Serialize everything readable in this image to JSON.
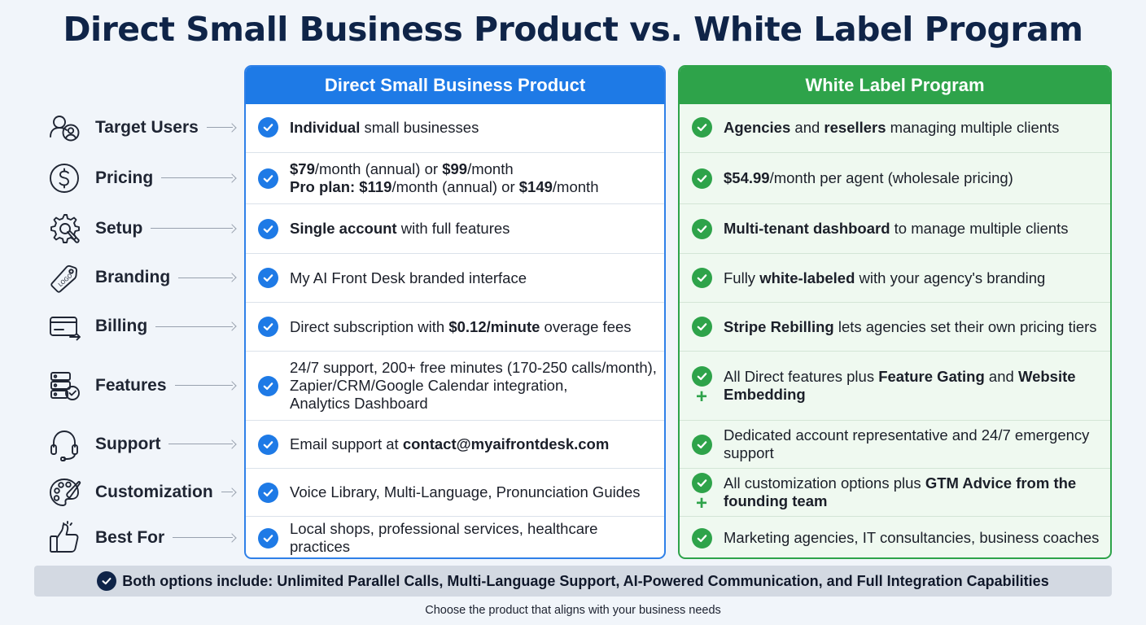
{
  "title": "Direct Small Business Product vs. White Label Program",
  "colors": {
    "title": "#0f2448",
    "direct_accent": "#1e7ae6",
    "white_label_accent": "#2ea34a",
    "banner_bg": "#d3d9e2"
  },
  "rows": [
    {
      "label": "Target Users",
      "icon": "users-icon"
    },
    {
      "label": "Pricing",
      "icon": "dollar-icon"
    },
    {
      "label": "Setup",
      "icon": "gear-wrench-icon"
    },
    {
      "label": "Branding",
      "icon": "logo-tag-icon"
    },
    {
      "label": "Billing",
      "icon": "credit-card-icon"
    },
    {
      "label": "Features",
      "icon": "server-check-icon"
    },
    {
      "label": "Support",
      "icon": "headset-icon"
    },
    {
      "label": "Customization",
      "icon": "palette-icon"
    },
    {
      "label": "Best For",
      "icon": "thumbs-up-icon"
    }
  ],
  "direct": {
    "header": "Direct Small Business Product",
    "cells": [
      {
        "lines": [
          [
            {
              "t": "Individual",
              "b": true
            },
            {
              "t": " small businesses"
            }
          ]
        ]
      },
      {
        "lines": [
          [
            {
              "t": "$79",
              "b": true
            },
            {
              "t": "/month (annual) or "
            },
            {
              "t": "$99",
              "b": true
            },
            {
              "t": "/month"
            }
          ],
          [
            {
              "t": "Pro plan: $119",
              "b": true
            },
            {
              "t": "/month (annual) or "
            },
            {
              "t": "$149",
              "b": true
            },
            {
              "t": "/month"
            }
          ]
        ]
      },
      {
        "lines": [
          [
            {
              "t": "Single account",
              "b": true
            },
            {
              "t": " with full features"
            }
          ]
        ]
      },
      {
        "lines": [
          [
            {
              "t": "My AI Front Desk branded interface"
            }
          ]
        ]
      },
      {
        "lines": [
          [
            {
              "t": "Direct subscription with "
            },
            {
              "t": "$0.12/minute",
              "b": true
            },
            {
              "t": " overage fees"
            }
          ]
        ]
      },
      {
        "lines": [
          [
            {
              "t": "24/7 support, 200+ free minutes (170-250 calls/month),"
            }
          ],
          [
            {
              "t": "Zapier/CRM/Google Calendar integration,"
            }
          ],
          [
            {
              "t": "Analytics Dashboard"
            }
          ]
        ]
      },
      {
        "lines": [
          [
            {
              "t": "Email support at "
            },
            {
              "t": "contact@myaifrontdesk.com",
              "b": true
            }
          ]
        ]
      },
      {
        "lines": [
          [
            {
              "t": "Voice Library, Multi-Language, Pronunciation Guides"
            }
          ]
        ]
      },
      {
        "lines": [
          [
            {
              "t": "Local shops, professional services, healthcare practices"
            }
          ]
        ]
      }
    ]
  },
  "white_label": {
    "header": "White Label Program",
    "cells": [
      {
        "lines": [
          [
            {
              "t": "Agencies",
              "b": true
            },
            {
              "t": " and "
            },
            {
              "t": "resellers",
              "b": true
            },
            {
              "t": " managing multiple clients"
            }
          ]
        ]
      },
      {
        "lines": [
          [
            {
              "t": "$54.99",
              "b": true
            },
            {
              "t": "/month per agent (wholesale pricing)"
            }
          ]
        ]
      },
      {
        "lines": [
          [
            {
              "t": "Multi-tenant dashboard",
              "b": true
            },
            {
              "t": " to manage multiple clients"
            }
          ]
        ]
      },
      {
        "lines": [
          [
            {
              "t": "Fully "
            },
            {
              "t": "white-labeled",
              "b": true
            },
            {
              "t": " with your agency's branding"
            }
          ]
        ]
      },
      {
        "lines": [
          [
            {
              "t": "Stripe Rebilling",
              "b": true
            },
            {
              "t": " lets agencies set their own pricing tiers"
            }
          ]
        ]
      },
      {
        "plus": true,
        "lines": [
          [
            {
              "t": "All Direct features plus "
            },
            {
              "t": "Feature Gating",
              "b": true
            },
            {
              "t": " and "
            },
            {
              "t": "Website",
              "b": true
            }
          ],
          [
            {
              "t": "Embedding",
              "b": true
            }
          ]
        ]
      },
      {
        "lines": [
          [
            {
              "t": "Dedicated account representative and 24/7 emergency"
            }
          ],
          [
            {
              "t": "support"
            }
          ]
        ]
      },
      {
        "plus": true,
        "lines": [
          [
            {
              "t": "All customization options plus "
            },
            {
              "t": "GTM Advice from the",
              "b": true
            }
          ],
          [
            {
              "t": "founding team",
              "b": true
            }
          ]
        ]
      },
      {
        "lines": [
          [
            {
              "t": "Marketing agencies, IT consultancies, business coaches"
            }
          ]
        ]
      }
    ]
  },
  "banner": {
    "icon": "check-circle-icon",
    "text": "Both options include: Unlimited Parallel Calls, Multi-Language Support, AI-Powered Communication, and Full Integration Capabilities"
  },
  "footer_note": "Choose the product that aligns with your business needs"
}
